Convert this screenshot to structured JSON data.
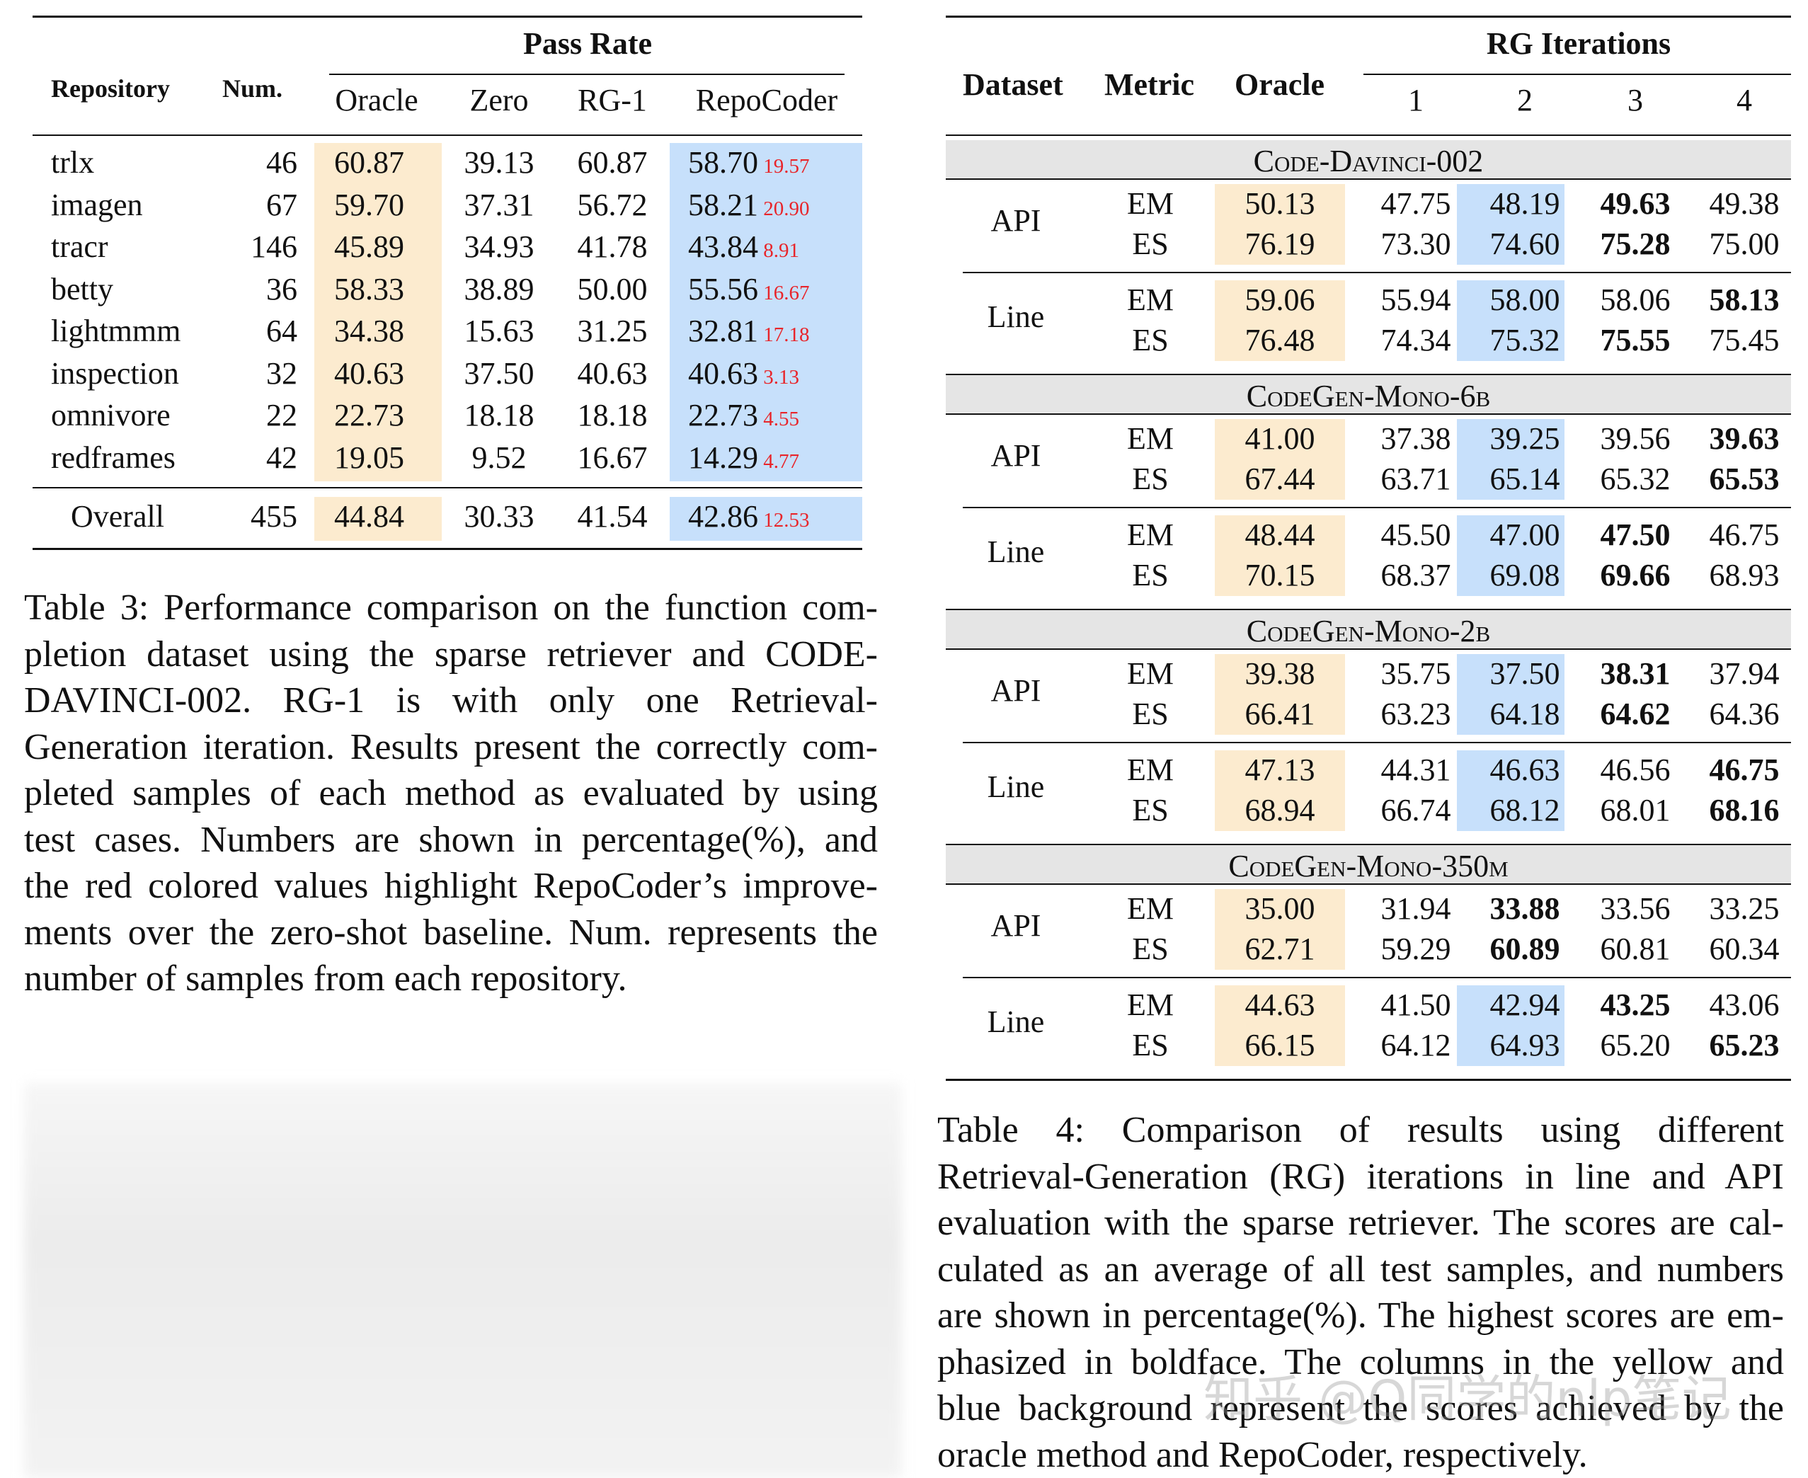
{
  "table3": {
    "header_group": "Pass Rate",
    "col_repository": "Repository",
    "col_num": "Num.",
    "cols": [
      "Oracle",
      "Zero",
      "RG-1",
      "RepoCoder"
    ],
    "rows": [
      {
        "repo": "trlx",
        "num": "46",
        "oracle": "60.87",
        "zero": "39.13",
        "rg1": "60.87",
        "repocoder": "58.70",
        "gain": "19.57"
      },
      {
        "repo": "imagen",
        "num": "67",
        "oracle": "59.70",
        "zero": "37.31",
        "rg1": "56.72",
        "repocoder": "58.21",
        "gain": "20.90"
      },
      {
        "repo": "tracr",
        "num": "146",
        "oracle": "45.89",
        "zero": "34.93",
        "rg1": "41.78",
        "repocoder": "43.84",
        "gain": "8.91"
      },
      {
        "repo": "betty",
        "num": "36",
        "oracle": "58.33",
        "zero": "38.89",
        "rg1": "50.00",
        "repocoder": "55.56",
        "gain": "16.67"
      },
      {
        "repo": "lightmmm",
        "num": "64",
        "oracle": "34.38",
        "zero": "15.63",
        "rg1": "31.25",
        "repocoder": "32.81",
        "gain": "17.18"
      },
      {
        "repo": "inspection",
        "num": "32",
        "oracle": "40.63",
        "zero": "37.50",
        "rg1": "40.63",
        "repocoder": "40.63",
        "gain": "3.13"
      },
      {
        "repo": "omnivore",
        "num": "22",
        "oracle": "22.73",
        "zero": "18.18",
        "rg1": "18.18",
        "repocoder": "22.73",
        "gain": "4.55"
      },
      {
        "repo": "redframes",
        "num": "42",
        "oracle": "19.05",
        "zero": "9.52",
        "rg1": "16.67",
        "repocoder": "14.29",
        "gain": "4.77"
      }
    ],
    "overall": {
      "repo": "Overall",
      "num": "455",
      "oracle": "44.84",
      "zero": "30.33",
      "rg1": "41.54",
      "repocoder": "42.86",
      "gain": "12.53"
    },
    "caption_lines": [
      "Table 3: Performance comparison on the function com-",
      "pletion dataset using the sparse retriever and CODE-",
      "DAVINCI-002. RG-1 is with only one Retrieval-",
      "Generation iteration. Results present the correctly com-",
      "pleted samples of each method as evaluated by using",
      "test cases. Numbers are shown in percentage(%), and",
      "the red colored values highlight RepoCoder’s improve-",
      "ments over the zero-shot baseline. Num. represents the",
      "number of samples from each repository."
    ]
  },
  "table4": {
    "col_dataset": "Dataset",
    "col_metric": "Metric",
    "col_oracle": "Oracle",
    "header_group": "RG Iterations",
    "iterations": [
      "1",
      "2",
      "3",
      "4"
    ],
    "groups": [
      {
        "model": "CODE-DAVINCI-002",
        "blocks": [
          {
            "dataset": "API",
            "rows": [
              {
                "metric": "EM",
                "oracle": "50.13",
                "v": [
                  "47.75",
                  "48.19",
                  "49.63",
                  "49.38"
                ],
                "bold": 2
              },
              {
                "metric": "ES",
                "oracle": "76.19",
                "v": [
                  "73.30",
                  "74.60",
                  "75.28",
                  "75.00"
                ],
                "bold": 2
              }
            ]
          },
          {
            "dataset": "Line",
            "rows": [
              {
                "metric": "EM",
                "oracle": "59.06",
                "v": [
                  "55.94",
                  "58.00",
                  "58.06",
                  "58.13"
                ],
                "bold": 3
              },
              {
                "metric": "ES",
                "oracle": "76.48",
                "v": [
                  "74.34",
                  "75.32",
                  "75.55",
                  "75.45"
                ],
                "bold": 2
              }
            ]
          }
        ]
      },
      {
        "model": "CODEGEN-MONO-6B",
        "blocks": [
          {
            "dataset": "API",
            "rows": [
              {
                "metric": "EM",
                "oracle": "41.00",
                "v": [
                  "37.38",
                  "39.25",
                  "39.56",
                  "39.63"
                ],
                "bold": 3
              },
              {
                "metric": "ES",
                "oracle": "67.44",
                "v": [
                  "63.71",
                  "65.14",
                  "65.32",
                  "65.53"
                ],
                "bold": 3
              }
            ]
          },
          {
            "dataset": "Line",
            "rows": [
              {
                "metric": "EM",
                "oracle": "48.44",
                "v": [
                  "45.50",
                  "47.00",
                  "47.50",
                  "46.75"
                ],
                "bold": 2
              },
              {
                "metric": "ES",
                "oracle": "70.15",
                "v": [
                  "68.37",
                  "69.08",
                  "69.66",
                  "68.93"
                ],
                "bold": 2
              }
            ]
          }
        ]
      },
      {
        "model": "CODEGEN-MONO-2B",
        "blocks": [
          {
            "dataset": "API",
            "rows": [
              {
                "metric": "EM",
                "oracle": "39.38",
                "v": [
                  "35.75",
                  "37.50",
                  "38.31",
                  "37.94"
                ],
                "bold": 2
              },
              {
                "metric": "ES",
                "oracle": "66.41",
                "v": [
                  "63.23",
                  "64.18",
                  "64.62",
                  "64.36"
                ],
                "bold": 2
              }
            ]
          },
          {
            "dataset": "Line",
            "rows": [
              {
                "metric": "EM",
                "oracle": "47.13",
                "v": [
                  "44.31",
                  "46.63",
                  "46.56",
                  "46.75"
                ],
                "bold": 3
              },
              {
                "metric": "ES",
                "oracle": "68.94",
                "v": [
                  "66.74",
                  "68.12",
                  "68.01",
                  "68.16"
                ],
                "bold": 3
              }
            ]
          }
        ]
      },
      {
        "model": "CODEGEN-MONO-350M",
        "blocks": [
          {
            "dataset": "API",
            "rows": [
              {
                "metric": "EM",
                "oracle": "35.00",
                "v": [
                  "31.94",
                  "33.88",
                  "33.56",
                  "33.25"
                ],
                "bold": 1
              },
              {
                "metric": "ES",
                "oracle": "62.71",
                "v": [
                  "59.29",
                  "60.89",
                  "60.81",
                  "60.34"
                ],
                "bold": 1
              }
            ]
          },
          {
            "dataset": "Line",
            "rows": [
              {
                "metric": "EM",
                "oracle": "44.63",
                "v": [
                  "41.50",
                  "42.94",
                  "43.25",
                  "43.06"
                ],
                "bold": 2
              },
              {
                "metric": "ES",
                "oracle": "66.15",
                "v": [
                  "64.12",
                  "64.93",
                  "65.20",
                  "65.23"
                ],
                "bold": 3
              }
            ]
          }
        ]
      }
    ],
    "caption_lines": [
      "Table 4: Comparison of results using different",
      "Retrieval-Generation (RG) iterations in line and API",
      "evaluation with the sparse retriever. The scores are cal-",
      "culated as an average of all test samples, and numbers",
      "are shown in percentage(%). The highest scores are em-",
      "phasized in boldface. The columns in the yellow and",
      "blue background represent the scores achieved by the",
      "oracle method and RepoCoder, respectively."
    ]
  },
  "watermark": "知乎 @Q同学的nlp笔记"
}
